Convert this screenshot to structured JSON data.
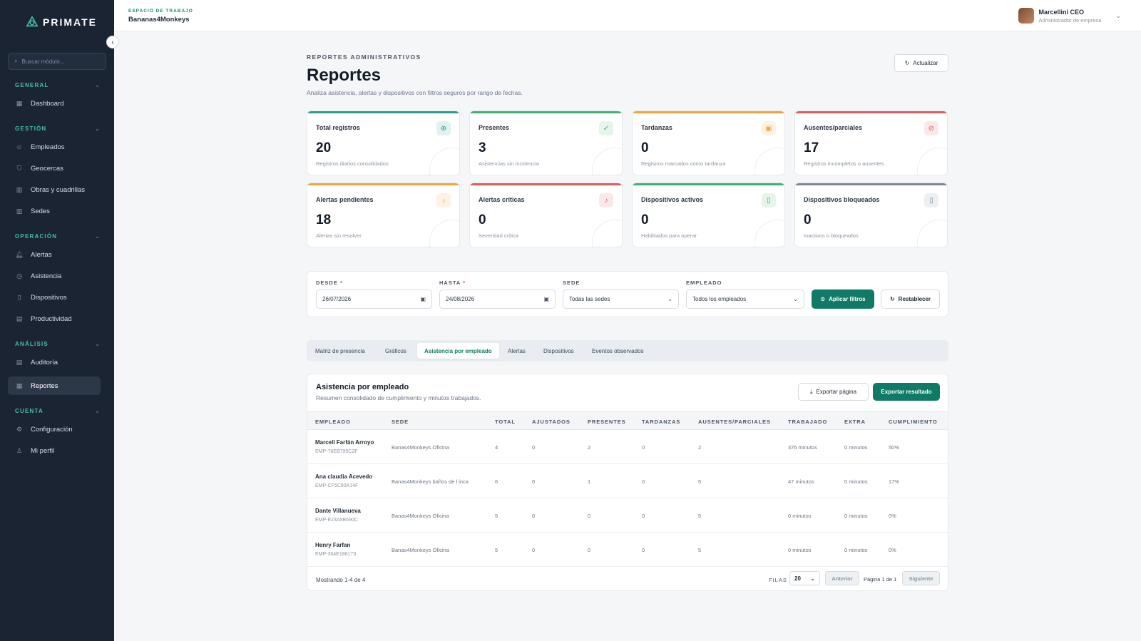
{
  "brand": {
    "name": "PRIMATE",
    "accent": "#45c0a5",
    "primary": "#0f7a66"
  },
  "sidebar": {
    "search_placeholder": "Buscar módulo...",
    "sections": [
      {
        "title": "GENERAL",
        "items": [
          {
            "label": "Dashboard",
            "icon": "grid-icon"
          }
        ]
      },
      {
        "title": "GESTIÓN",
        "items": [
          {
            "label": "Empleados",
            "icon": "users-icon"
          },
          {
            "label": "Geocercas",
            "icon": "shield-icon"
          },
          {
            "label": "Obras y cuadrillas",
            "icon": "building-icon"
          },
          {
            "label": "Sedes",
            "icon": "building-icon"
          }
        ]
      },
      {
        "title": "OPERACIÓN",
        "items": [
          {
            "label": "Alertas",
            "icon": "bell-icon"
          },
          {
            "label": "Asistencia",
            "icon": "clock-icon"
          },
          {
            "label": "Dispositivos",
            "icon": "phone-icon"
          },
          {
            "label": "Productividad",
            "icon": "chart-icon"
          }
        ]
      },
      {
        "title": "ANÁLISIS",
        "items": [
          {
            "label": "Auditoría",
            "icon": "clipboard-icon"
          },
          {
            "label": "Reportes",
            "icon": "report-icon",
            "active": true
          }
        ]
      },
      {
        "title": "CUENTA",
        "items": [
          {
            "label": "Configuración",
            "icon": "gear-icon"
          },
          {
            "label": "Mi perfil",
            "icon": "user-icon"
          }
        ]
      }
    ]
  },
  "topbar": {
    "workspace_label": "ESPACIO DE TRABAJO",
    "workspace_name": "Bananas4Monkeys",
    "user_name": "Marcellini CEO",
    "user_role": "Administrador de empresa"
  },
  "page": {
    "eyebrow": "REPORTES ADMINISTRATIVOS",
    "title": "Reportes",
    "subtitle": "Analiza asistencia, alertas y dispositivos con filtros seguros por rango de fechas.",
    "refresh_label": "Actualizar"
  },
  "cards": [
    {
      "label": "Total registros",
      "value": "20",
      "sub": "Registros diarios consolidados",
      "color": "#2a9d8f",
      "icon": "plus-circle-icon"
    },
    {
      "label": "Presentes",
      "value": "3",
      "sub": "Asistencias sin incidencia",
      "color": "#3bb273",
      "icon": "check-circle-icon"
    },
    {
      "label": "Tardanzas",
      "value": "0",
      "sub": "Registros marcados como tardanza",
      "color": "#f0a53a",
      "icon": "calendar-icon"
    },
    {
      "label": "Ausentes/parciales",
      "value": "17",
      "sub": "Registros incompletos o ausentes",
      "color": "#e05b5b",
      "icon": "ban-icon"
    },
    {
      "label": "Alertas pendientes",
      "value": "18",
      "sub": "Alertas sin resolver",
      "color": "#f0a53a",
      "icon": "bell-icon"
    },
    {
      "label": "Alertas críticas",
      "value": "0",
      "sub": "Severidad crítica",
      "color": "#e05b5b",
      "icon": "bell-icon"
    },
    {
      "label": "Dispositivos activos",
      "value": "0",
      "sub": "Habilitados para operar",
      "color": "#3bb273",
      "icon": "phone-icon"
    },
    {
      "label": "Dispositivos bloqueados",
      "value": "0",
      "sub": "Inactivos o bloqueados",
      "color": "#7b8797",
      "icon": "phone-icon"
    }
  ],
  "filters": {
    "desde_label": "DESDE",
    "desde_value": "26/07/2026",
    "hasta_label": "HASTA",
    "hasta_value": "24/08/2026",
    "sede_label": "SEDE",
    "sede_value": "Todas las sedes",
    "empleado_label": "EMPLEADO",
    "empleado_value": "Todos los empleados",
    "apply_label": "Aplicar filtros",
    "reset_label": "Restablecer"
  },
  "tabs": [
    {
      "label": "Matriz de presencia"
    },
    {
      "label": "Gráficos"
    },
    {
      "label": "Asistencia por empleado",
      "active": true
    },
    {
      "label": "Alertas"
    },
    {
      "label": "Dispositivos"
    },
    {
      "label": "Eventos observados"
    }
  ],
  "panel": {
    "title": "Asistencia por empleado",
    "subtitle": "Resumen consolidado de cumplimiento y minutos trabajados.",
    "export_page_label": "Exportar página",
    "export_all_label": "Exportar resultado",
    "columns": [
      "EMPLEADO",
      "SEDE",
      "TOTAL",
      "AJUSTADOS",
      "PRESENTES",
      "TARDANZAS",
      "AUSENTES/PARCIALES",
      "TRABAJADO",
      "EXTRA",
      "CUMPLIMIENTO"
    ],
    "rows": [
      {
        "name": "Marcell Farfán Arroyo",
        "code": "EMP-76EB795C2F",
        "sede": "Banas4Monkeys Oficina",
        "total": "4",
        "ajustados": "0",
        "presentes": "2",
        "tardanzas": "0",
        "ausentes": "2",
        "trabajado": "376 minutos",
        "extra": "0 minutos",
        "cumplimiento": "50%"
      },
      {
        "name": "Ana claudia Acevedo",
        "code": "EMP-CF5C90A14F",
        "sede": "Banas4Monkeys baños de l inca",
        "total": "6",
        "ajustados": "0",
        "presentes": "1",
        "tardanzas": "0",
        "ausentes": "5",
        "trabajado": "47 minutos",
        "extra": "0 minutos",
        "cumplimiento": "17%"
      },
      {
        "name": "Dante Villanueva",
        "code": "EMP-E23A5B590C",
        "sede": "Banas4Monkeys Oficina",
        "total": "5",
        "ajustados": "0",
        "presentes": "0",
        "tardanzas": "0",
        "ausentes": "5",
        "trabajado": "0 minutos",
        "extra": "0 minutos",
        "cumplimiento": "0%"
      },
      {
        "name": "Henry Farfan",
        "code": "EMP-364E186173",
        "sede": "Banas4Monkeys Oficina",
        "total": "5",
        "ajustados": "0",
        "presentes": "0",
        "tardanzas": "0",
        "ausentes": "5",
        "trabajado": "0 minutos",
        "extra": "0 minutos",
        "cumplimiento": "0%"
      }
    ],
    "footer": {
      "showing": "Mostrando 1-4 de 4",
      "rows_label": "FILAS",
      "rows_value": "20",
      "prev_label": "Anterior",
      "page_info": "Página 1 de 1",
      "next_label": "Siguiente"
    }
  }
}
